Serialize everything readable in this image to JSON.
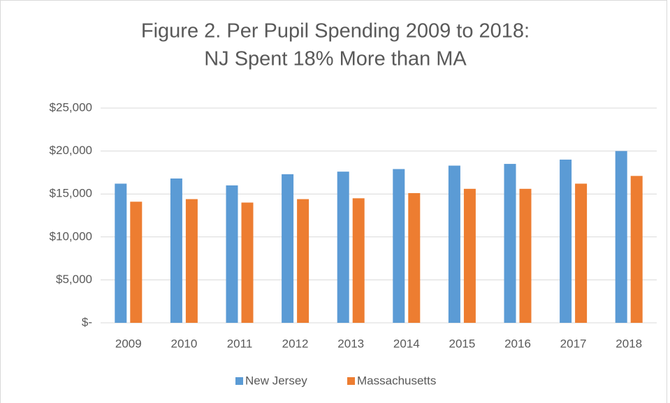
{
  "chart_data": {
    "type": "bar",
    "title": [
      "Figure 2. Per Pupil Spending 2009 to 2018:",
      "NJ Spent 18% More than MA"
    ],
    "categories": [
      "2009",
      "2010",
      "2011",
      "2012",
      "2013",
      "2014",
      "2015",
      "2016",
      "2017",
      "2018"
    ],
    "series": [
      {
        "name": "New Jersey",
        "color": "#5b9bd5",
        "values": [
          16200,
          16800,
          16000,
          17300,
          17600,
          17900,
          18300,
          18500,
          19000,
          20000
        ]
      },
      {
        "name": "Massachusetts",
        "color": "#ed7d31",
        "values": [
          14100,
          14400,
          14000,
          14400,
          14500,
          15100,
          15600,
          15600,
          16200,
          17100
        ]
      }
    ],
    "ylim": [
      0,
      25000
    ],
    "yticks": [
      {
        "value": 0,
        "label": "$-"
      },
      {
        "value": 5000,
        "label": "$5,000"
      },
      {
        "value": 10000,
        "label": "$10,000"
      },
      {
        "value": 15000,
        "label": "$15,000"
      },
      {
        "value": 20000,
        "label": "$20,000"
      },
      {
        "value": 25000,
        "label": "$25,000"
      }
    ],
    "grid": true,
    "legend": "bottom"
  }
}
